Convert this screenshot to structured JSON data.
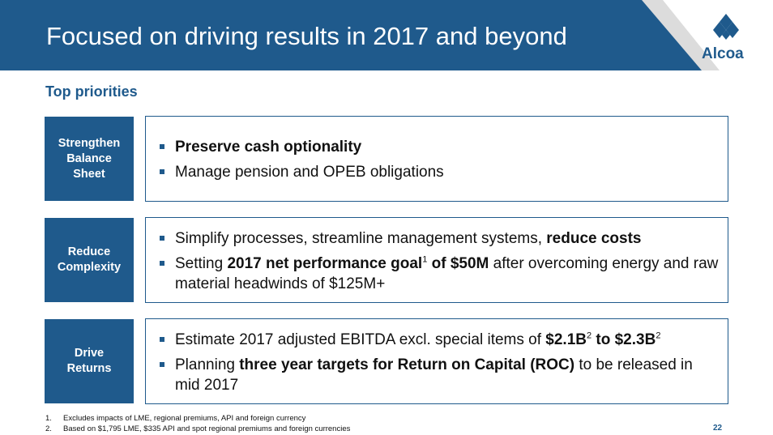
{
  "header": {
    "title": "Focused on driving results in 2017 and beyond",
    "logo_text": "Alcoa"
  },
  "section_title": "Top priorities",
  "rows": [
    {
      "label_lines": [
        "Strengthen",
        "Balance",
        "Sheet"
      ],
      "bullets": [
        {
          "parts": [
            {
              "text": "Preserve cash optionality",
              "bold": true
            }
          ]
        },
        {
          "parts": [
            {
              "text": "Manage pension and OPEB obligations",
              "bold": false
            }
          ]
        }
      ]
    },
    {
      "label_lines": [
        "Reduce",
        "Complexity"
      ],
      "bullets": [
        {
          "parts": [
            {
              "text": "Simplify processes, streamline management systems, ",
              "bold": false
            },
            {
              "text": "reduce costs",
              "bold": true
            }
          ]
        },
        {
          "parts": [
            {
              "text": "Setting ",
              "bold": false
            },
            {
              "text": "2017 net performance goal",
              "bold": true
            },
            {
              "text": "1",
              "sup": true
            },
            {
              "text": " of $50M",
              "bold": true
            },
            {
              "text": " after overcoming energy and raw material headwinds of $125M+",
              "bold": false
            }
          ]
        }
      ]
    },
    {
      "label_lines": [
        "Drive",
        "Returns"
      ],
      "bullets": [
        {
          "parts": [
            {
              "text": "Estimate 2017 adjusted EBITDA excl. special items of ",
              "bold": false
            },
            {
              "text": "$2.1B",
              "bold": true
            },
            {
              "text": "2",
              "sup": true
            },
            {
              "text": " to $2.3B",
              "bold": true
            },
            {
              "text": "2",
              "sup": true
            }
          ]
        },
        {
          "parts": [
            {
              "text": "Planning ",
              "bold": false
            },
            {
              "text": "three year targets for Return on Capital (ROC)",
              "bold": true
            },
            {
              "text": " to be released in mid 2017",
              "bold": false
            }
          ]
        }
      ]
    }
  ],
  "footnotes": [
    {
      "num": "1.",
      "text": "Excludes impacts of LME, regional premiums, API and foreign currency"
    },
    {
      "num": "2.",
      "text": "Based on $1,795 LME, $335 API and spot regional premiums and foreign currencies"
    }
  ],
  "page_number": "22",
  "colors": {
    "brand_blue": "#1f5a8c",
    "logo_gray": "#dcdcdc"
  }
}
